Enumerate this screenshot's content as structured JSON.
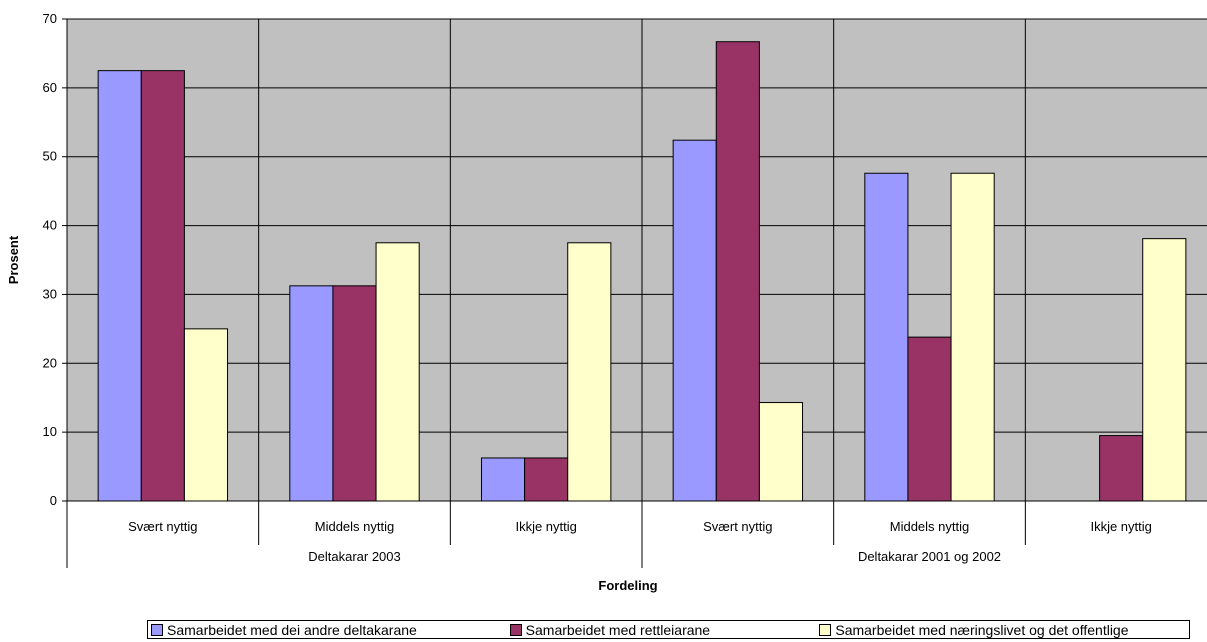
{
  "chart_data": {
    "type": "bar",
    "ylabel": "Prosent",
    "xlabel": "Fordeling",
    "ylim": [
      0,
      70
    ],
    "yticks": [
      "0",
      "10",
      "20",
      "30",
      "40",
      "50",
      "60",
      "70"
    ],
    "grid": true,
    "legend_position": "bottom",
    "groups": [
      {
        "label": "Deltakarar 2003",
        "categories": [
          "Svært nyttig",
          "Middels nyttig",
          "Ikkje nyttig"
        ]
      },
      {
        "label": "Deltakarar 2001 og 2002",
        "categories": [
          "Svært nyttig",
          "Middels nyttig",
          "Ikkje nyttig"
        ]
      }
    ],
    "categories": [
      "Svært nyttig",
      "Middels nyttig",
      "Ikkje nyttig",
      "Svært nyttig",
      "Middels nyttig",
      "Ikkje nyttig"
    ],
    "series": [
      {
        "name": "Samarbeidet med dei andre deltakarane",
        "color": "#9999FF",
        "values": [
          62.5,
          31.25,
          6.25,
          52.4,
          47.6,
          0
        ]
      },
      {
        "name": "Samarbeidet med rettleiarane",
        "color": "#993366",
        "values": [
          62.5,
          31.25,
          6.25,
          66.7,
          23.8,
          9.5
        ]
      },
      {
        "name": "Samarbeidet med næringslivet og det offentlige",
        "color": "#FFFFCC",
        "values": [
          25.0,
          37.5,
          37.5,
          14.3,
          47.6,
          38.1
        ]
      }
    ],
    "colors": {
      "plot_background": "#C0C0C0",
      "gridline": "#000000"
    }
  }
}
